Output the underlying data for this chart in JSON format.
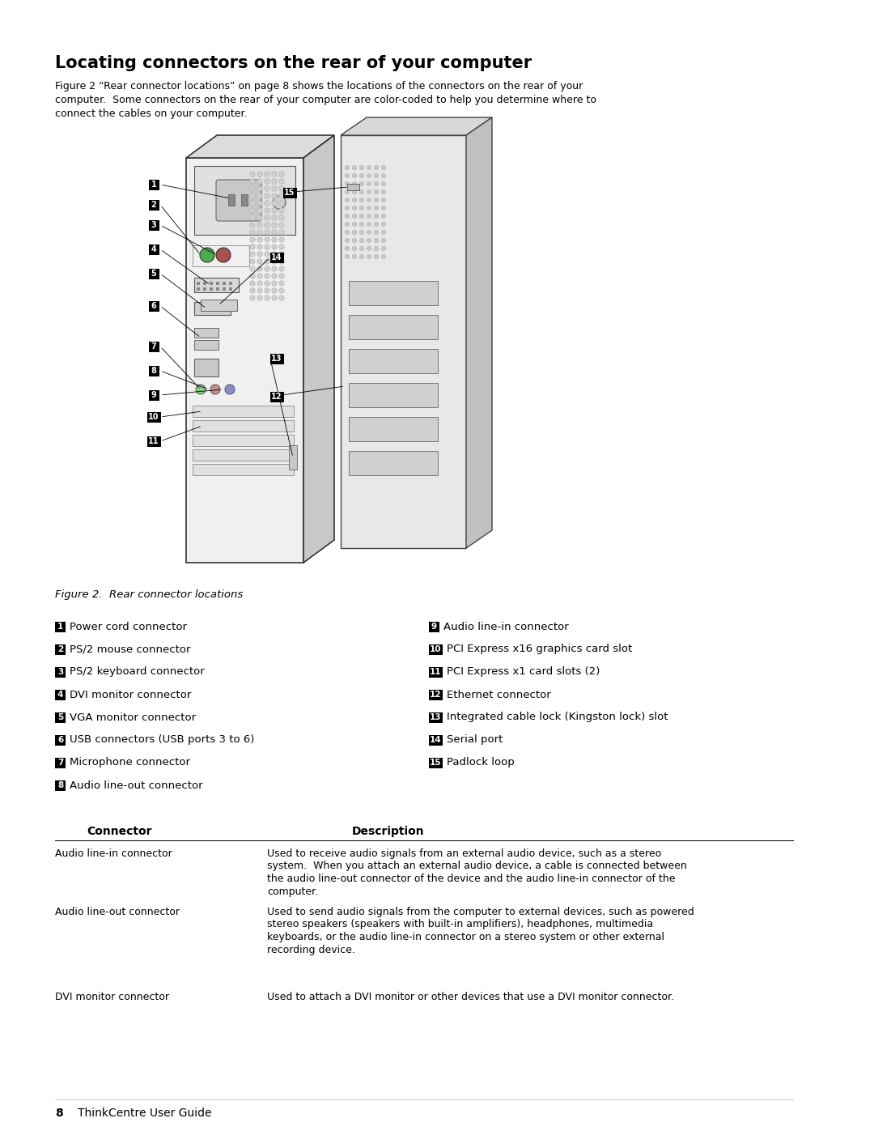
{
  "title": "Locating connectors on the rear of your computer",
  "intro_text": "Figure 2 “Rear connector locations” on page 8 shows the locations of the connectors on the rear of your\ncomputer.  Some connectors on the rear of your computer are color-coded to help you determine where to\nconnect the cables on your computer.",
  "figure_caption": "Figure 2.  Rear connector locations",
  "connectors_left": [
    [
      "1",
      "Power cord connector"
    ],
    [
      "2",
      "PS/2 mouse connector"
    ],
    [
      "3",
      "PS/2 keyboard connector"
    ],
    [
      "4",
      "DVI monitor connector"
    ],
    [
      "5",
      "VGA monitor connector"
    ],
    [
      "6",
      "USB connectors (USB ports 3 to 6)"
    ],
    [
      "7",
      "Microphone connector"
    ],
    [
      "8",
      "Audio line-out connector"
    ]
  ],
  "connectors_right": [
    [
      "9",
      "Audio line-in connector"
    ],
    [
      "10",
      "PCI Express x16 graphics card slot"
    ],
    [
      "11",
      "PCI Express x1 card slots (2)"
    ],
    [
      "12",
      "Ethernet connector"
    ],
    [
      "13",
      "Integrated cable lock (Kingston lock) slot"
    ],
    [
      "14",
      "Serial port"
    ],
    [
      "15",
      "Padlock loop"
    ]
  ],
  "table_header_col1": "Connector",
  "table_header_col2": "Description",
  "table_rows": [
    [
      "Audio line-in connector",
      "Used to receive audio signals from an external audio device, such as a stereo\nsystem.  When you attach an external audio device, a cable is connected between\nthe audio line-out connector of the device and the audio line-in connector of the\ncomputer."
    ],
    [
      "Audio line-out connector",
      "Used to send audio signals from the computer to external devices, such as powered\nstereo speakers (speakers with built-in amplifiers), headphones, multimedia\nkeyboards, or the audio line-in connector on a stereo system or other external\nrecording device."
    ],
    [
      "DVI monitor connector",
      "Used to attach a DVI monitor or other devices that use a DVI monitor connector."
    ]
  ],
  "footer_num": "8",
  "footer_text": "ThinkCentre User Guide",
  "bg_color": "#ffffff",
  "text_color": "#000000",
  "badge_color": "#000000",
  "badge_text_color": "#ffffff"
}
